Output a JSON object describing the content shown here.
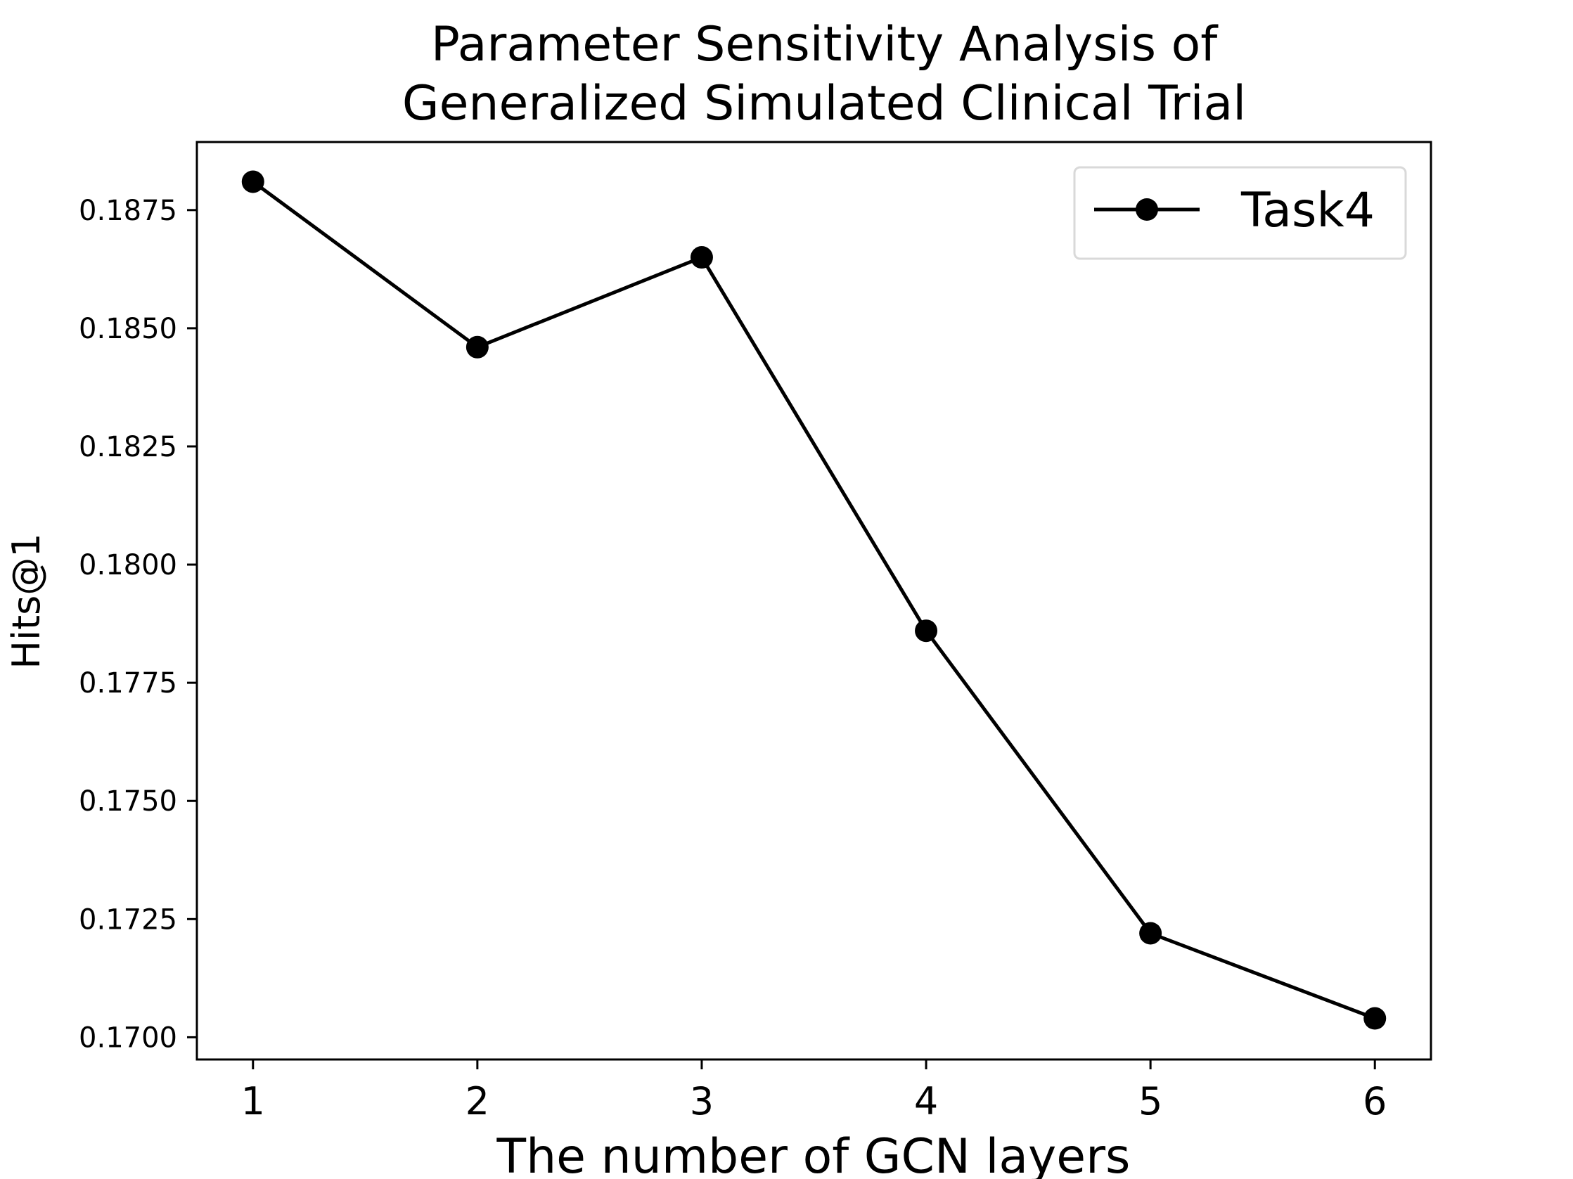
{
  "chart_data": {
    "type": "line",
    "title_lines": [
      "Parameter Sensitivity Analysis of",
      "Generalized Simulated Clinical Trial"
    ],
    "xlabel": "The number of GCN layers",
    "ylabel": "Hits@1",
    "x": [
      1,
      2,
      3,
      4,
      5,
      6
    ],
    "x_tick_labels": [
      "1",
      "2",
      "3",
      "4",
      "5",
      "6"
    ],
    "y_ticks": [
      0.17,
      0.1725,
      0.175,
      0.1775,
      0.18,
      0.1825,
      0.185,
      0.1875
    ],
    "y_tick_labels": [
      "0.1700",
      "0.1725",
      "0.1750",
      "0.1775",
      "0.1800",
      "0.1825",
      "0.1850",
      "0.1875"
    ],
    "xlim": [
      0.75,
      6.25
    ],
    "ylim": [
      0.16953,
      0.18894
    ],
    "grid": false,
    "legend_position": "top-right",
    "series": [
      {
        "name": "Task4",
        "color": "#000000",
        "marker": "circle",
        "values": [
          0.1881,
          0.1846,
          0.1865,
          0.1786,
          0.1722,
          0.1704
        ]
      }
    ]
  }
}
